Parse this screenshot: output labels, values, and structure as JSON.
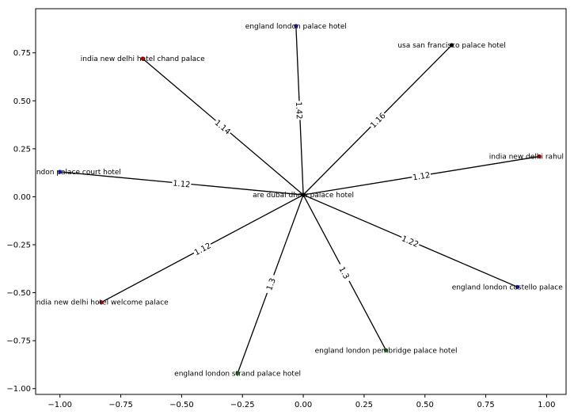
{
  "chart_data": {
    "type": "scatter",
    "title": "",
    "xlabel": "",
    "ylabel": "",
    "xlim": [
      -1.1,
      1.08
    ],
    "ylim": [
      -1.03,
      0.98
    ],
    "grid": false,
    "legend": "none",
    "x_ticks": [
      -1.0,
      -0.75,
      -0.5,
      -0.25,
      0.0,
      0.25,
      0.5,
      0.75,
      1.0
    ],
    "x_tick_labels": [
      "−1.00",
      "−0.75",
      "−0.50",
      "−0.25",
      "0.00",
      "0.25",
      "0.50",
      "0.75",
      "1.00"
    ],
    "y_ticks": [
      -1.0,
      -0.75,
      -0.5,
      -0.25,
      0.0,
      0.25,
      0.5,
      0.75
    ],
    "y_tick_labels": [
      "−1.00",
      "−0.75",
      "−0.50",
      "−0.25",
      "0.00",
      "0.25",
      "0.50",
      "0.75"
    ],
    "colors": {
      "edge": "#000000",
      "black": "#000000",
      "blue": "#1f1fcf",
      "red": "#cc0000",
      "green": "#1f7a1f"
    },
    "center": "are dubai dhow palace hotel",
    "nodes": [
      {
        "label": "are dubai dhow palace hotel",
        "x": 0.0,
        "y": 0.01,
        "color": "black"
      },
      {
        "label": "england london palace hotel",
        "x": -0.03,
        "y": 0.89,
        "color": "blue"
      },
      {
        "label": "usa san francisco palace hotel",
        "x": 0.61,
        "y": 0.79,
        "color": "black"
      },
      {
        "label": "india new delhi hotel chand palace",
        "x": -0.66,
        "y": 0.72,
        "color": "red"
      },
      {
        "label": "india new delhi rahul palace",
        "x": 0.97,
        "y": 0.21,
        "color": "red"
      },
      {
        "label": "england london palace court hotel",
        "x": -1.0,
        "y": 0.13,
        "color": "blue"
      },
      {
        "label": "india new delhi hotel welcome palace",
        "x": -0.83,
        "y": -0.55,
        "color": "red"
      },
      {
        "label": "england london costello palace hotel",
        "x": 0.88,
        "y": -0.47,
        "color": "blue"
      },
      {
        "label": "england london pembridge palace hotel",
        "x": 0.34,
        "y": -0.8,
        "color": "green"
      },
      {
        "label": "england london strand palace hotel",
        "x": -0.27,
        "y": -0.92,
        "color": "green"
      }
    ],
    "edges": [
      {
        "target": "england london palace hotel",
        "weight": "1.42"
      },
      {
        "target": "usa san francisco palace hotel",
        "weight": "1.16"
      },
      {
        "target": "india new delhi hotel chand palace",
        "weight": "1.14"
      },
      {
        "target": "india new delhi rahul palace",
        "weight": "1.12"
      },
      {
        "target": "england london palace court hotel",
        "weight": "1.12"
      },
      {
        "target": "india new delhi hotel welcome palace",
        "weight": "1.12"
      },
      {
        "target": "england london costello palace hotel",
        "weight": "1.22"
      },
      {
        "target": "england london pembridge palace hotel",
        "weight": "1.3"
      },
      {
        "target": "england london strand palace hotel",
        "weight": "1.3"
      }
    ]
  }
}
